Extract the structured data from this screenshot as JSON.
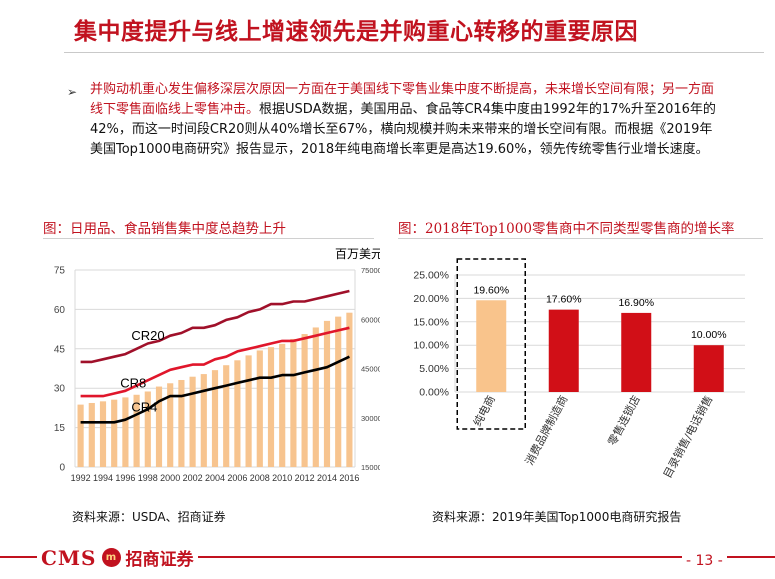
{
  "header": {
    "title": "集中度提升与线上增速领先是并购重心转移的重要原因"
  },
  "bullet": {
    "symbol": "➢",
    "part_red": "并购动机重心发生偏移深层次原因一方面在于美国线下零售业集中度不断提高，未来增长空间有限；另一方面线下零售面临线上零售冲击。",
    "part_black": "根据USDA数据，美国用品、食品等CR4集中度由1992年的17%升至2016年的42%，而这一时间段CR20则从40%增长至67%，横向规模并购未来带来的增长空间有限。而根据《2019年美国Top1000电商研究》报告显示，2018年纯电商增长率更是高达19.60%，领先传统零售行业增长速度。"
  },
  "chart_left": {
    "caption": "图：日用品、食品销售集中度总趋势上升",
    "unit_label": "百万美元",
    "source": "资料来源：USDA、招商证券"
  },
  "chart_right": {
    "caption": "图：2018年Top1000零售商中不同类型零售商的增长率",
    "source": "资料来源：2019年美国Top1000电商研究报告"
  },
  "footer": {
    "logo_latin": "CMS",
    "logo_emblem": "m",
    "logo_name": "招商证券",
    "page": "- 13 -"
  },
  "colors": {
    "accent": "#c1121f",
    "bar_light": "#f7c48f",
    "cr20": "#a0102a",
    "cr8": "#e0162b",
    "cr4": "#000000",
    "bar_red": "#d10f17",
    "bar_highlight": "#f9c48c"
  },
  "chart_data": [
    {
      "type": "line",
      "title": "日用品、食品销售集中度总趋势上升",
      "x": [
        "1992",
        "1993",
        "1994",
        "1995",
        "1996",
        "1997",
        "1998",
        "1999",
        "2000",
        "2001",
        "2002",
        "2003",
        "2004",
        "2005",
        "2006",
        "2007",
        "2008",
        "2009",
        "2010",
        "2011",
        "2012",
        "2013",
        "2014",
        "2015",
        "2016"
      ],
      "x_tick_labels": [
        "1992",
        "1994",
        "1996",
        "1998",
        "2000",
        "2002",
        "2004",
        "2006",
        "2008",
        "2010",
        "2012",
        "2014",
        "2016"
      ],
      "y_left_ticks": [
        0,
        15,
        30,
        45,
        60,
        75
      ],
      "y_left_lim": [
        0,
        75
      ],
      "y_right_ticks": [
        150000,
        300000,
        450000,
        600000,
        750000
      ],
      "y_right_lim": [
        150000,
        750000
      ],
      "y_right_label": "百万美元",
      "grid": true,
      "series": [
        {
          "name": "CR20",
          "axis": "left",
          "values": [
            40,
            40,
            41,
            42,
            43,
            45,
            47,
            48,
            50,
            51,
            53,
            53,
            54,
            56,
            57,
            59,
            60,
            62,
            62,
            63,
            63,
            64,
            65,
            66,
            67
          ]
        },
        {
          "name": "CR8",
          "axis": "left",
          "values": [
            27,
            27,
            27,
            28,
            29,
            31,
            33,
            35,
            37,
            38,
            39,
            39,
            41,
            42,
            44,
            45,
            46,
            47,
            48,
            48,
            49,
            50,
            51,
            52,
            53
          ]
        },
        {
          "name": "CR4",
          "axis": "left",
          "values": [
            17,
            17,
            17,
            17,
            18,
            20,
            22,
            25,
            27,
            27,
            28,
            29,
            30,
            31,
            32,
            33,
            34,
            34,
            35,
            35,
            36,
            37,
            38,
            40,
            42
          ]
        },
        {
          "name": "",
          "type": "bar",
          "axis": "right",
          "values": [
            340000,
            345000,
            350000,
            355000,
            362000,
            370000,
            380000,
            395000,
            405000,
            415000,
            425000,
            433000,
            445000,
            460000,
            475000,
            490000,
            505000,
            515000,
            525000,
            540000,
            555000,
            575000,
            595000,
            608000,
            620000
          ]
        }
      ]
    },
    {
      "type": "bar",
      "title": "2018年Top1000零售商中不同类型零售商的增长率",
      "categories": [
        "纯电商",
        "消费品牌制造商",
        "零售连锁店",
        "目录销售/电话销售"
      ],
      "values": [
        19.6,
        17.6,
        16.9,
        10.0
      ],
      "value_labels": [
        "19.60%",
        "17.60%",
        "16.90%",
        "10.00%"
      ],
      "y_ticks": [
        "0.00%",
        "5.00%",
        "10.00%",
        "15.00%",
        "20.00%",
        "25.00%"
      ],
      "ylim": [
        0,
        25
      ],
      "highlighted_category": "纯电商"
    }
  ]
}
